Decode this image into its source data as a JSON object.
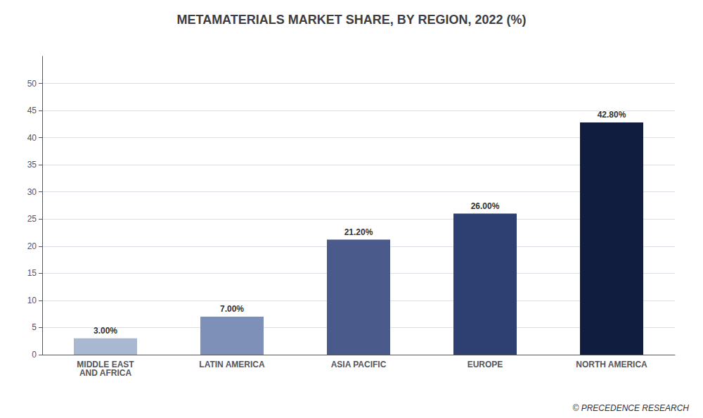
{
  "chart_data": {
    "type": "bar",
    "title": "METAMATERIALS MARKET SHARE, BY REGION, 2022 (%)",
    "categories": [
      "MIDDLE EAST\nAND AFRICA",
      "LATIN AMERICA",
      "ASIA PACIFIC",
      "EUROPE",
      "NORTH AMERICA"
    ],
    "values": [
      3.0,
      7.0,
      21.2,
      26.0,
      42.8
    ],
    "value_labels": [
      "3.00%",
      "7.00%",
      "21.20%",
      "26.00%",
      "42.80%"
    ],
    "data_labels": true,
    "colors": [
      "#a8b8d0",
      "#7e90b8",
      "#4a5a8a",
      "#2e3f72",
      "#111d3e"
    ],
    "ylim": [
      0,
      55
    ],
    "yticks": [
      0,
      5,
      10,
      15,
      20,
      25,
      30,
      35,
      40,
      45,
      50
    ],
    "grid": true,
    "annotations": [
      "© PRECEDENCE RESEARCH"
    ]
  }
}
